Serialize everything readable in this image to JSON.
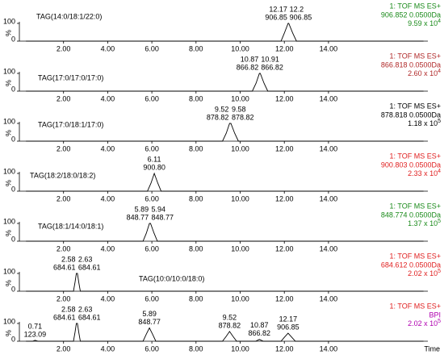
{
  "chart_data": [
    {
      "type": "line",
      "title": "TAG(14:0/18:1/22:0)",
      "ylabel": "%",
      "header": [
        "1: TOF MS ES+",
        "906.852 0.0500Da"
      ],
      "intensity": {
        "mantissa": "9.59 x 10",
        "exponent": "4"
      },
      "header_colors": [
        "#1a8a1a",
        "#1a8a1a",
        "#1a8a1a"
      ],
      "x": [
        0.3,
        11.85,
        12.0,
        12.17,
        12.2,
        12.38,
        12.55,
        18.3
      ],
      "series": [
        {
          "color": "#000000",
          "values": [
            0,
            0,
            45,
            100,
            100,
            45,
            0,
            0
          ]
        }
      ],
      "annotations": [
        {
          "x": 12.17,
          "mz": "906.85"
        },
        {
          "x": 12.2,
          "mz": "906.85"
        }
      ],
      "xlim": [
        0,
        18.5
      ],
      "ylim": [
        0,
        100
      ],
      "yticks": [
        0,
        100
      ],
      "xticks": [
        {
          "value": 2,
          "label": "2.00"
        },
        {
          "value": 4,
          "label": "4.00"
        },
        {
          "value": 6,
          "label": "6.00"
        },
        {
          "value": 8,
          "label": "8.00"
        },
        {
          "value": 10,
          "label": "10.00"
        },
        {
          "value": 12,
          "label": "12.00"
        },
        {
          "value": 14,
          "label": "14.00"
        }
      ]
    },
    {
      "type": "line",
      "title": "TAG(17:0/17:0/17:0)",
      "ylabel": "%",
      "header": [
        "1: TOF MS ES+",
        "866.818 0.0500Da"
      ],
      "intensity": {
        "mantissa": "2.60 x 10",
        "exponent": "4"
      },
      "header_colors": [
        "#b02828",
        "#b02828",
        "#b02828"
      ],
      "x": [
        0.3,
        10.55,
        10.72,
        10.87,
        10.91,
        11.08,
        11.25,
        18.3
      ],
      "series": [
        {
          "color": "#000000",
          "values": [
            0,
            0,
            45,
            100,
            100,
            45,
            0,
            0
          ]
        }
      ],
      "annotations": [
        {
          "x": 10.87,
          "mz": "866.82"
        },
        {
          "x": 10.91,
          "mz": "866.82"
        }
      ],
      "xlim": [
        0,
        18.5
      ],
      "ylim": [
        0,
        100
      ],
      "yticks": [
        0,
        100
      ],
      "xticks": [
        {
          "value": 2,
          "label": "2.00"
        },
        {
          "value": 4,
          "label": "4.00"
        },
        {
          "value": 6,
          "label": "6.00"
        },
        {
          "value": 8,
          "label": "8.00"
        },
        {
          "value": 10,
          "label": "10.00"
        },
        {
          "value": 12,
          "label": "12.00"
        },
        {
          "value": 14,
          "label": "14.00"
        }
      ]
    },
    {
      "type": "line",
      "title": "TAG(17:0/18:1/17:0)",
      "ylabel": "%",
      "header": [
        "1: TOF MS ES+",
        "878.818 0.0500Da"
      ],
      "intensity": {
        "mantissa": "1.18 x 10",
        "exponent": "5"
      },
      "header_colors": [
        "#000000",
        "#000000",
        "#000000"
      ],
      "x": [
        0.3,
        9.2,
        9.37,
        9.52,
        9.58,
        9.75,
        9.92,
        18.3
      ],
      "series": [
        {
          "color": "#000000",
          "values": [
            0,
            0,
            45,
            100,
            100,
            45,
            0,
            0
          ]
        }
      ],
      "annotations": [
        {
          "x": 9.52,
          "mz": "878.82"
        },
        {
          "x": 9.58,
          "mz": "878.82"
        }
      ],
      "xlim": [
        0,
        18.5
      ],
      "ylim": [
        0,
        100
      ],
      "yticks": [
        0,
        100
      ],
      "xticks": [
        {
          "value": 2,
          "label": "2.00"
        },
        {
          "value": 4,
          "label": "4.00"
        },
        {
          "value": 6,
          "label": "6.00"
        },
        {
          "value": 8,
          "label": "8.00"
        },
        {
          "value": 10,
          "label": "10.00"
        },
        {
          "value": 12,
          "label": "12.00"
        },
        {
          "value": 14,
          "label": "14.00"
        }
      ]
    },
    {
      "type": "line",
      "title": "TAG(18:2/18:0/18:2)",
      "ylabel": "%",
      "header": [
        "1: TOF MS ES+",
        "900.803 0.0500Da"
      ],
      "intensity": {
        "mantissa": "2.33 x 10",
        "exponent": "4"
      },
      "header_colors": [
        "#e02020",
        "#e02020",
        "#e02020"
      ],
      "x": [
        0.3,
        5.8,
        5.96,
        6.11,
        6.27,
        6.42,
        18.3
      ],
      "series": [
        {
          "color": "#000000",
          "values": [
            0,
            0,
            45,
            100,
            45,
            0,
            0
          ]
        }
      ],
      "annotations": [
        {
          "x": 6.11,
          "mz": "900.80"
        }
      ],
      "xlim": [
        0,
        18.5
      ],
      "ylim": [
        0,
        100
      ],
      "yticks": [
        0,
        100
      ],
      "xticks": [
        {
          "value": 2,
          "label": "2.00"
        },
        {
          "value": 4,
          "label": "4.00"
        },
        {
          "value": 6,
          "label": "6.00"
        },
        {
          "value": 8,
          "label": "8.00"
        },
        {
          "value": 10,
          "label": "10.00"
        },
        {
          "value": 12,
          "label": "12.00"
        },
        {
          "value": 14,
          "label": "14.00"
        }
      ]
    },
    {
      "type": "line",
      "title": "TAG(18:1/14:0/18:1)",
      "ylabel": "%",
      "header": [
        "1: TOF MS ES+",
        "848.774 0.0500Da"
      ],
      "intensity": {
        "mantissa": "1.37 x 10",
        "exponent": "5"
      },
      "header_colors": [
        "#1a8a1a",
        "#1a8a1a",
        "#1a8a1a"
      ],
      "x": [
        0.3,
        5.6,
        5.75,
        5.89,
        5.94,
        6.1,
        6.25,
        18.3
      ],
      "series": [
        {
          "color": "#000000",
          "values": [
            0,
            0,
            45,
            100,
            100,
            45,
            0,
            0
          ]
        }
      ],
      "annotations": [
        {
          "x": 5.89,
          "mz": "848.77"
        },
        {
          "x": 5.94,
          "mz": "848.77"
        }
      ],
      "xlim": [
        0,
        18.5
      ],
      "ylim": [
        0,
        100
      ],
      "yticks": [
        0,
        100
      ],
      "xticks": [
        {
          "value": 2,
          "label": "2.00"
        },
        {
          "value": 4,
          "label": "4.00"
        },
        {
          "value": 6,
          "label": "6.00"
        },
        {
          "value": 8,
          "label": "8.00"
        },
        {
          "value": 10,
          "label": "10.00"
        },
        {
          "value": 12,
          "label": "12.00"
        },
        {
          "value": 14,
          "label": "14.00"
        }
      ]
    },
    {
      "type": "line",
      "title": "TAG(10:0/10:0/18:0)",
      "ylabel": "%",
      "header": [
        "1: TOF MS ES+",
        "684.612 0.0500Da"
      ],
      "intensity": {
        "mantissa": "2.02 x 10",
        "exponent": "5"
      },
      "header_colors": [
        "#e02020",
        "#e02020",
        "#e02020"
      ],
      "x": [
        0.3,
        2.45,
        2.52,
        2.58,
        2.63,
        2.69,
        2.76,
        18.3
      ],
      "series": [
        {
          "color": "#000000",
          "values": [
            0,
            0,
            50,
            100,
            100,
            50,
            0,
            0
          ]
        }
      ],
      "annotations": [
        {
          "x": 2.58,
          "mz": "684.61"
        },
        {
          "x": 2.63,
          "mz": "684.61"
        }
      ],
      "xlim": [
        0,
        18.5
      ],
      "ylim": [
        0,
        100
      ],
      "yticks": [
        0,
        100
      ],
      "xticks": [
        {
          "value": 2,
          "label": "2.00"
        },
        {
          "value": 4,
          "label": "4.00"
        },
        {
          "value": 6,
          "label": "6.00"
        },
        {
          "value": 8,
          "label": "8.00"
        },
        {
          "value": 10,
          "label": "10.00"
        },
        {
          "value": 12,
          "label": "12.00"
        },
        {
          "value": 14,
          "label": "14.00"
        }
      ]
    },
    {
      "type": "line",
      "ylabel": "%",
      "xlabel": "Time",
      "header": [
        "1: TOF MS ES+",
        "BPI"
      ],
      "intensity": {
        "mantissa": "2.02 x 10",
        "exponent": "5"
      },
      "header_colors": [
        "#e02020",
        "#b000b0",
        "#b000b0"
      ],
      "x": [
        0.3,
        0.6,
        0.71,
        0.85,
        2.45,
        2.52,
        2.58,
        2.63,
        2.69,
        2.76,
        5.6,
        5.75,
        5.89,
        6.03,
        6.18,
        9.2,
        9.37,
        9.52,
        9.67,
        9.84,
        10.7,
        10.87,
        11.05,
        11.85,
        12.0,
        12.17,
        12.34,
        12.5,
        18.3
      ],
      "series": [
        {
          "color": "#000000",
          "values": [
            0,
            0,
            5,
            0,
            0,
            50,
            100,
            100,
            50,
            0,
            0,
            40,
            75,
            40,
            0,
            0,
            28,
            55,
            28,
            0,
            0,
            10,
            0,
            0,
            22,
            45,
            22,
            0,
            0
          ]
        }
      ],
      "annotations": [
        {
          "x": 0.71,
          "mz": "123.09"
        },
        {
          "x": 2.58,
          "mz": "684.61"
        },
        {
          "x": 2.63,
          "mz": "684.61"
        },
        {
          "x": 5.89,
          "mz": "848.77"
        },
        {
          "x": 9.52,
          "mz": "878.82"
        },
        {
          "x": 10.87,
          "mz": "866.82"
        },
        {
          "x": 12.17,
          "mz": "906.85"
        }
      ],
      "xlim": [
        0,
        18.5
      ],
      "ylim": [
        0,
        100
      ],
      "yticks": [
        0,
        100
      ],
      "xticks": [
        {
          "value": 2,
          "label": "2.00"
        },
        {
          "value": 4,
          "label": "4.00"
        },
        {
          "value": 6,
          "label": "6.00"
        },
        {
          "value": 8,
          "label": "8.00"
        },
        {
          "value": 10,
          "label": "10.00"
        },
        {
          "value": 12,
          "label": "12.00"
        },
        {
          "value": 14,
          "label": "14.00"
        }
      ]
    }
  ]
}
